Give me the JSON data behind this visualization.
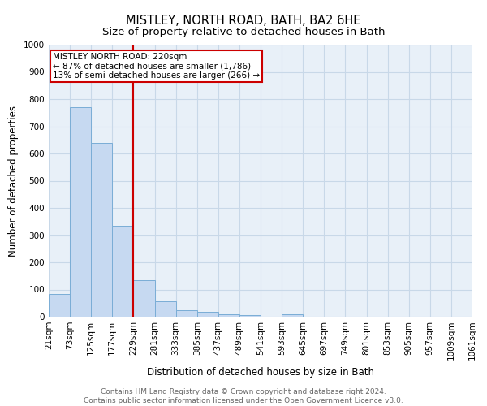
{
  "title": "MISTLEY, NORTH ROAD, BATH, BA2 6HE",
  "subtitle": "Size of property relative to detached houses in Bath",
  "xlabel": "Distribution of detached houses by size in Bath",
  "ylabel": "Number of detached properties",
  "bin_labels": [
    "21sqm",
    "73sqm",
    "125sqm",
    "177sqm",
    "229sqm",
    "281sqm",
    "333sqm",
    "385sqm",
    "437sqm",
    "489sqm",
    "541sqm",
    "593sqm",
    "645sqm",
    "697sqm",
    "749sqm",
    "801sqm",
    "853sqm",
    "905sqm",
    "957sqm",
    "1009sqm",
    "1061sqm"
  ],
  "bar_values": [
    83,
    770,
    640,
    335,
    135,
    58,
    25,
    18,
    10,
    7,
    0,
    10,
    0,
    0,
    0,
    0,
    0,
    0,
    0,
    0
  ],
  "bar_color": "#c6d9f1",
  "bar_edge_color": "#7aadd6",
  "vline_x": 4.0,
  "vline_color": "#cc0000",
  "annotation_text": "MISTLEY NORTH ROAD: 220sqm\n← 87% of detached houses are smaller (1,786)\n13% of semi-detached houses are larger (266) →",
  "annotation_box_color": "#cc0000",
  "ylim": [
    0,
    1000
  ],
  "yticks": [
    0,
    100,
    200,
    300,
    400,
    500,
    600,
    700,
    800,
    900,
    1000
  ],
  "grid_color": "#c8d8e8",
  "background_color": "#e8f0f8",
  "footer_line1": "Contains HM Land Registry data © Crown copyright and database right 2024.",
  "footer_line2": "Contains public sector information licensed under the Open Government Licence v3.0.",
  "title_fontsize": 10.5,
  "subtitle_fontsize": 9.5,
  "axis_label_fontsize": 8.5,
  "tick_fontsize": 7.5,
  "footer_fontsize": 6.5
}
